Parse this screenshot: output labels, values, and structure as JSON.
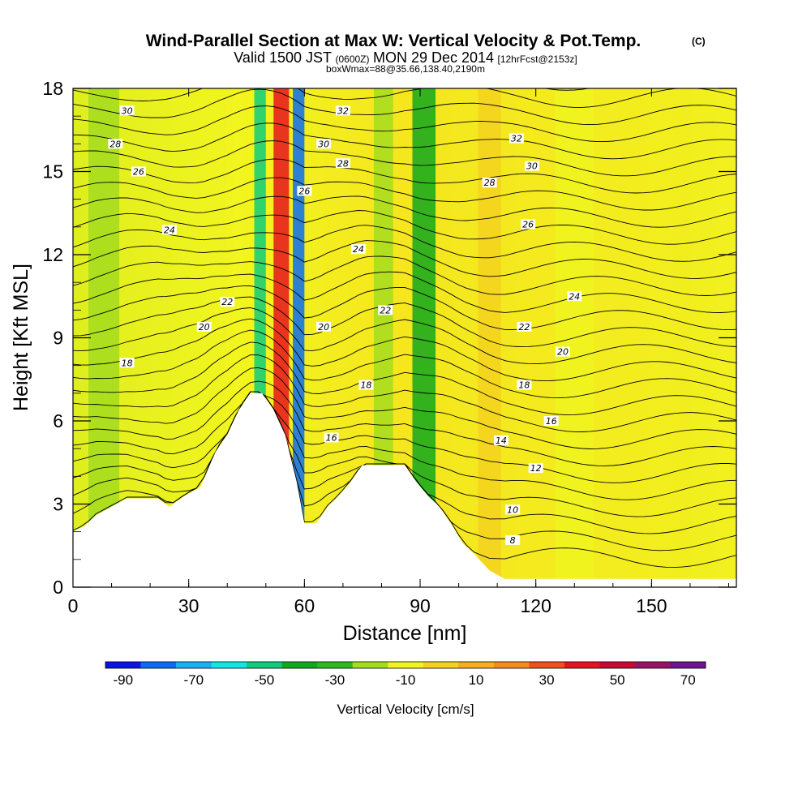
{
  "chart_data": {
    "type": "heatmap",
    "title": "Wind-Parallel Section at Max W: Vertical Velocity & Pot.Temp.",
    "title_units": "(C)",
    "subtitle_parts": {
      "p1": "Valid 1500 JST",
      "p2": "(0600Z)",
      "p3": "MON 29 Dec 2014",
      "p4": "[12hrFcst@2153z]"
    },
    "subtitle2": "boxWmax=88@35.66,138.40,2190m",
    "xlabel": "Distance [nm]",
    "ylabel": "Height [Kft MSL]",
    "xlim": [
      0,
      172
    ],
    "ylim": [
      0,
      18
    ],
    "xticks": [
      "0",
      "30",
      "60",
      "90",
      "120",
      "150"
    ],
    "yticks": [
      "0",
      "3",
      "6",
      "9",
      "12",
      "15",
      "18"
    ],
    "colorbar": {
      "label": "Vertical Velocity [cm/s]",
      "tick_labels": [
        "-90",
        "-70",
        "-50",
        "-30",
        "-10",
        "10",
        "30",
        "50",
        "70"
      ],
      "levels": [
        -100,
        -80,
        -60,
        -40,
        -20,
        0,
        20,
        40,
        60,
        80
      ],
      "colors": [
        "#0a14e6",
        "#0a6cf0",
        "#18b0f0",
        "#10e6e6",
        "#10cc7a",
        "#10a81e",
        "#2fb820",
        "#a4dc1e",
        "#f0f51e",
        "#f5d21e",
        "#f6ae1e",
        "#f58c1e",
        "#f0501e",
        "#e6141e",
        "#c80a32",
        "#961464",
        "#6e148c"
      ]
    },
    "vertical_velocity_bands": [
      {
        "x": 4,
        "w": 8,
        "v": -10
      },
      {
        "x": 47,
        "w": 3,
        "v": -40
      },
      {
        "x": 52,
        "w": 4,
        "v": 50
      },
      {
        "x": 57,
        "w": 3,
        "v": -70
      },
      {
        "x": 78,
        "w": 5,
        "v": -15
      },
      {
        "x": 88,
        "w": 6,
        "v": -30
      },
      {
        "x": 105,
        "w": 6,
        "v": 12
      },
      {
        "x": 125,
        "w": 10,
        "v": 5
      }
    ],
    "terrain": [
      [
        0,
        2.0
      ],
      [
        3,
        2.2
      ],
      [
        6,
        2.6
      ],
      [
        10,
        2.9
      ],
      [
        14,
        3.2
      ],
      [
        22,
        3.2
      ],
      [
        25,
        2.9
      ],
      [
        29,
        3.3
      ],
      [
        33,
        3.6
      ],
      [
        37,
        4.9
      ],
      [
        40,
        5.5
      ],
      [
        43,
        6.4
      ],
      [
        46,
        7.0
      ],
      [
        49,
        7.0
      ],
      [
        52,
        6.4
      ],
      [
        55,
        5.5
      ],
      [
        58,
        3.8
      ],
      [
        60,
        2.3
      ],
      [
        63,
        2.3
      ],
      [
        66,
        2.9
      ],
      [
        69,
        3.3
      ],
      [
        72,
        3.8
      ],
      [
        75,
        4.4
      ],
      [
        78,
        4.4
      ],
      [
        82,
        4.4
      ],
      [
        86,
        4.4
      ],
      [
        89,
        3.8
      ],
      [
        92,
        3.3
      ],
      [
        95,
        2.9
      ],
      [
        98,
        2.3
      ],
      [
        101,
        1.6
      ],
      [
        104,
        1.2
      ],
      [
        108,
        0.6
      ],
      [
        112,
        0.3
      ],
      [
        120,
        0.3
      ],
      [
        172,
        0.3
      ]
    ],
    "potential_temperature": {
      "contour_interval": 1,
      "labeled_levels": [
        "8",
        "10",
        "12",
        "14",
        "16",
        "18",
        "20",
        "22",
        "24",
        "26",
        "28",
        "30",
        "32"
      ],
      "labels": [
        {
          "text": "30",
          "x": 14,
          "y": 17.2
        },
        {
          "text": "28",
          "x": 11,
          "y": 16.0
        },
        {
          "text": "26",
          "x": 17,
          "y": 15.0
        },
        {
          "text": "24",
          "x": 25,
          "y": 12.9
        },
        {
          "text": "22",
          "x": 40,
          "y": 10.3
        },
        {
          "text": "20",
          "x": 34,
          "y": 9.4
        },
        {
          "text": "18",
          "x": 14,
          "y": 8.1
        },
        {
          "text": "32",
          "x": 70,
          "y": 17.2
        },
        {
          "text": "30",
          "x": 65,
          "y": 16.0
        },
        {
          "text": "28",
          "x": 70,
          "y": 15.3
        },
        {
          "text": "26",
          "x": 60,
          "y": 14.3
        },
        {
          "text": "24",
          "x": 74,
          "y": 12.2
        },
        {
          "text": "22",
          "x": 81,
          "y": 10.0
        },
        {
          "text": "20",
          "x": 65,
          "y": 9.4
        },
        {
          "text": "18",
          "x": 76,
          "y": 7.3
        },
        {
          "text": "16",
          "x": 67,
          "y": 5.4
        },
        {
          "text": "32",
          "x": 115,
          "y": 16.2
        },
        {
          "text": "30",
          "x": 119,
          "y": 15.2
        },
        {
          "text": "28",
          "x": 108,
          "y": 14.6
        },
        {
          "text": "26",
          "x": 118,
          "y": 13.1
        },
        {
          "text": "24",
          "x": 130,
          "y": 10.5
        },
        {
          "text": "22",
          "x": 117,
          "y": 9.4
        },
        {
          "text": "20",
          "x": 127,
          "y": 8.5
        },
        {
          "text": "18",
          "x": 117,
          "y": 7.3
        },
        {
          "text": "16",
          "x": 124,
          "y": 6.0
        },
        {
          "text": "14",
          "x": 111,
          "y": 5.3
        },
        {
          "text": "12",
          "x": 120,
          "y": 4.3
        },
        {
          "text": "10",
          "x": 114,
          "y": 2.8
        },
        {
          "text": "8",
          "x": 114,
          "y": 1.7
        }
      ]
    }
  }
}
